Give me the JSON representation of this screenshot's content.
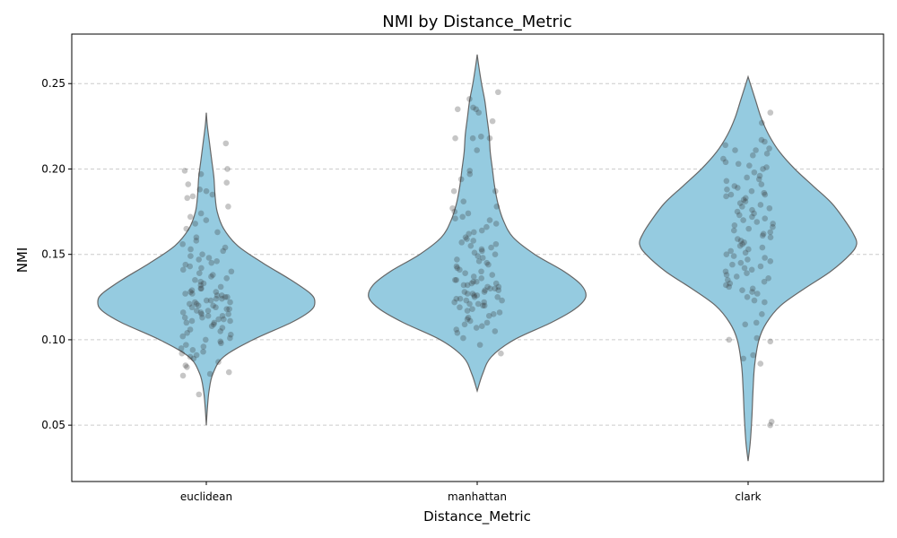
{
  "chart_data": {
    "type": "violin",
    "title": "NMI by Distance_Metric",
    "xlabel": "Distance_Metric",
    "ylabel": "NMI",
    "categories": [
      "euclidean",
      "manhattan",
      "clark"
    ],
    "ylim": [
      0.017,
      0.279
    ],
    "yticks": [
      0.05,
      0.1,
      0.15,
      0.2,
      0.25
    ],
    "ytick_labels": [
      "0.05",
      "0.10",
      "0.15",
      "0.20",
      "0.25"
    ],
    "grid": "y-dashed",
    "colors": {
      "violin_fill": "#95cbe0",
      "violin_edge": "#666666",
      "point": "#333333",
      "grid": "#cccccc"
    },
    "violins": [
      {
        "category": "euclidean",
        "range": [
          0.05,
          0.233
        ],
        "profile": [
          [
            0.05,
            0.0
          ],
          [
            0.06,
            0.01
          ],
          [
            0.07,
            0.025
          ],
          [
            0.08,
            0.06
          ],
          [
            0.09,
            0.16
          ],
          [
            0.1,
            0.43
          ],
          [
            0.11,
            0.78
          ],
          [
            0.117,
            0.96
          ],
          [
            0.122,
            1.0
          ],
          [
            0.127,
            0.96
          ],
          [
            0.135,
            0.78
          ],
          [
            0.145,
            0.52
          ],
          [
            0.155,
            0.29
          ],
          [
            0.165,
            0.16
          ],
          [
            0.175,
            0.1
          ],
          [
            0.185,
            0.08
          ],
          [
            0.195,
            0.07
          ],
          [
            0.205,
            0.05
          ],
          [
            0.215,
            0.03
          ],
          [
            0.225,
            0.01
          ],
          [
            0.233,
            0.0
          ]
        ],
        "points": [
          0.215,
          0.2,
          0.199,
          0.197,
          0.192,
          0.191,
          0.188,
          0.187,
          0.185,
          0.184,
          0.183,
          0.178,
          0.174,
          0.172,
          0.17,
          0.168,
          0.165,
          0.163,
          0.16,
          0.158,
          0.156,
          0.154,
          0.153,
          0.152,
          0.15,
          0.149,
          0.148,
          0.147,
          0.146,
          0.145,
          0.144,
          0.143,
          0.142,
          0.141,
          0.14,
          0.139,
          0.138,
          0.137,
          0.136,
          0.135,
          0.134,
          0.133,
          0.132,
          0.131,
          0.13,
          0.13,
          0.129,
          0.128,
          0.128,
          0.127,
          0.127,
          0.126,
          0.126,
          0.125,
          0.125,
          0.124,
          0.124,
          0.123,
          0.123,
          0.122,
          0.122,
          0.121,
          0.121,
          0.12,
          0.12,
          0.119,
          0.119,
          0.118,
          0.118,
          0.117,
          0.117,
          0.116,
          0.116,
          0.115,
          0.115,
          0.114,
          0.114,
          0.113,
          0.113,
          0.112,
          0.112,
          0.111,
          0.111,
          0.11,
          0.11,
          0.109,
          0.108,
          0.107,
          0.106,
          0.105,
          0.104,
          0.103,
          0.102,
          0.101,
          0.1,
          0.099,
          0.098,
          0.097,
          0.096,
          0.095,
          0.094,
          0.093,
          0.092,
          0.091,
          0.09,
          0.089,
          0.087,
          0.085,
          0.084,
          0.081,
          0.08,
          0.079,
          0.068
        ]
      },
      {
        "category": "manhattan",
        "range": [
          0.07,
          0.267
        ],
        "profile": [
          [
            0.07,
            0.0
          ],
          [
            0.08,
            0.05
          ],
          [
            0.09,
            0.13
          ],
          [
            0.1,
            0.34
          ],
          [
            0.11,
            0.68
          ],
          [
            0.118,
            0.9
          ],
          [
            0.125,
            1.0
          ],
          [
            0.132,
            0.96
          ],
          [
            0.14,
            0.8
          ],
          [
            0.15,
            0.53
          ],
          [
            0.16,
            0.33
          ],
          [
            0.17,
            0.24
          ],
          [
            0.18,
            0.19
          ],
          [
            0.19,
            0.16
          ],
          [
            0.2,
            0.14
          ],
          [
            0.21,
            0.12
          ],
          [
            0.22,
            0.11
          ],
          [
            0.23,
            0.09
          ],
          [
            0.24,
            0.07
          ],
          [
            0.25,
            0.04
          ],
          [
            0.26,
            0.015
          ],
          [
            0.267,
            0.0
          ]
        ],
        "points": [
          0.245,
          0.241,
          0.236,
          0.235,
          0.235,
          0.233,
          0.228,
          0.219,
          0.218,
          0.218,
          0.218,
          0.211,
          0.199,
          0.197,
          0.194,
          0.187,
          0.187,
          0.181,
          0.178,
          0.177,
          0.175,
          0.174,
          0.172,
          0.171,
          0.17,
          0.168,
          0.166,
          0.164,
          0.163,
          0.162,
          0.16,
          0.159,
          0.158,
          0.157,
          0.156,
          0.155,
          0.154,
          0.153,
          0.152,
          0.151,
          0.15,
          0.149,
          0.148,
          0.147,
          0.146,
          0.145,
          0.144,
          0.143,
          0.142,
          0.141,
          0.14,
          0.139,
          0.138,
          0.137,
          0.136,
          0.135,
          0.135,
          0.134,
          0.134,
          0.133,
          0.133,
          0.132,
          0.132,
          0.131,
          0.131,
          0.13,
          0.13,
          0.129,
          0.129,
          0.128,
          0.128,
          0.127,
          0.127,
          0.126,
          0.126,
          0.125,
          0.125,
          0.124,
          0.124,
          0.123,
          0.123,
          0.122,
          0.122,
          0.121,
          0.121,
          0.12,
          0.12,
          0.119,
          0.118,
          0.117,
          0.116,
          0.115,
          0.114,
          0.113,
          0.112,
          0.111,
          0.11,
          0.109,
          0.108,
          0.107,
          0.106,
          0.105,
          0.104,
          0.101,
          0.097,
          0.092
        ]
      },
      {
        "category": "clark",
        "range": [
          0.029,
          0.254
        ],
        "profile": [
          [
            0.029,
            0.0
          ],
          [
            0.04,
            0.02
          ],
          [
            0.055,
            0.035
          ],
          [
            0.07,
            0.045
          ],
          [
            0.085,
            0.06
          ],
          [
            0.1,
            0.1
          ],
          [
            0.11,
            0.17
          ],
          [
            0.12,
            0.3
          ],
          [
            0.13,
            0.52
          ],
          [
            0.14,
            0.76
          ],
          [
            0.15,
            0.94
          ],
          [
            0.156,
            1.0
          ],
          [
            0.162,
            0.97
          ],
          [
            0.17,
            0.89
          ],
          [
            0.18,
            0.77
          ],
          [
            0.19,
            0.6
          ],
          [
            0.2,
            0.43
          ],
          [
            0.21,
            0.29
          ],
          [
            0.22,
            0.19
          ],
          [
            0.23,
            0.12
          ],
          [
            0.24,
            0.07
          ],
          [
            0.248,
            0.03
          ],
          [
            0.254,
            0.0
          ]
        ],
        "points": [
          0.233,
          0.227,
          0.217,
          0.216,
          0.214,
          0.212,
          0.211,
          0.211,
          0.209,
          0.208,
          0.206,
          0.204,
          0.203,
          0.202,
          0.201,
          0.2,
          0.198,
          0.196,
          0.195,
          0.194,
          0.193,
          0.191,
          0.19,
          0.189,
          0.188,
          0.187,
          0.186,
          0.185,
          0.185,
          0.184,
          0.183,
          0.182,
          0.181,
          0.18,
          0.179,
          0.178,
          0.177,
          0.176,
          0.175,
          0.174,
          0.173,
          0.172,
          0.171,
          0.17,
          0.169,
          0.168,
          0.167,
          0.166,
          0.165,
          0.164,
          0.163,
          0.162,
          0.161,
          0.16,
          0.159,
          0.158,
          0.157,
          0.156,
          0.155,
          0.154,
          0.153,
          0.152,
          0.151,
          0.15,
          0.149,
          0.148,
          0.147,
          0.146,
          0.145,
          0.144,
          0.143,
          0.142,
          0.141,
          0.14,
          0.139,
          0.138,
          0.137,
          0.136,
          0.135,
          0.134,
          0.133,
          0.132,
          0.131,
          0.13,
          0.129,
          0.128,
          0.127,
          0.125,
          0.123,
          0.122,
          0.115,
          0.11,
          0.109,
          0.101,
          0.1,
          0.099,
          0.091,
          0.089,
          0.086,
          0.052,
          0.05
        ]
      }
    ]
  }
}
